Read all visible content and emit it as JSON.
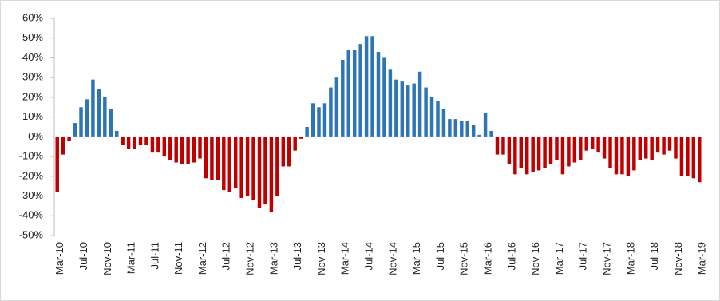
{
  "chart_data": {
    "type": "bar",
    "categories": [
      "Mar-10",
      null,
      null,
      null,
      "Jul-10",
      null,
      null,
      null,
      "Nov-10",
      null,
      null,
      null,
      "Mar-11",
      null,
      null,
      null,
      "Jul-11",
      null,
      null,
      null,
      "Nov-11",
      null,
      null,
      null,
      "Mar-12",
      null,
      null,
      null,
      "Jul-12",
      null,
      null,
      null,
      "Nov-12",
      null,
      null,
      null,
      "Mar-13",
      null,
      null,
      null,
      "Jul-13",
      null,
      null,
      null,
      "Nov-13",
      null,
      null,
      null,
      "Mar-14",
      null,
      null,
      null,
      "Jul-14",
      null,
      null,
      null,
      "Nov-14",
      null,
      null,
      null,
      "Mar-15",
      null,
      null,
      null,
      "Jul-15",
      null,
      null,
      null,
      "Nov-15",
      null,
      null,
      null,
      "Mar-16",
      null,
      null,
      null,
      "Jul-16",
      null,
      null,
      null,
      "Nov-16",
      null,
      null,
      null,
      "Mar-17",
      null,
      null,
      null,
      "Jul-17",
      null,
      null,
      null,
      "Nov-17",
      null,
      null,
      null,
      "Mar-18",
      null,
      null,
      null,
      "Jul-18",
      null,
      null,
      null,
      "Nov-18",
      null,
      null,
      null,
      "Mar-19"
    ],
    "values": [
      -28,
      -9,
      -2,
      7,
      15,
      19,
      29,
      24,
      20,
      14,
      3,
      -4,
      -6,
      -6,
      -4,
      -4,
      -8,
      -8,
      -10,
      -12,
      -13,
      -14,
      -14,
      -13,
      -11,
      -21,
      -22,
      -22,
      -27,
      -28,
      -26,
      -31,
      -30,
      -32,
      -36,
      -34,
      -38,
      -30,
      -15,
      -15,
      -7,
      -1,
      5,
      17,
      15,
      17,
      25,
      30,
      39,
      44,
      44,
      47,
      51,
      51,
      43,
      40,
      34,
      29,
      28,
      26,
      27,
      33,
      25,
      20,
      18,
      14,
      9,
      9,
      8,
      8,
      6,
      1,
      12,
      3,
      -9,
      -9,
      -14,
      -19,
      -16,
      -19,
      -18,
      -17,
      -16,
      -14,
      -12,
      -19,
      -15,
      -13,
      -12,
      -7,
      -6,
      -8,
      -11,
      -16,
      -19,
      -19,
      -20,
      -17,
      -12,
      -11,
      -12,
      -8,
      -9,
      -7,
      -11,
      -20,
      -20,
      -21,
      -23
    ],
    "positive_color": "#2e75b6",
    "negative_color": "#c00000",
    "ylim": [
      -50,
      60
    ],
    "yticks": [
      {
        "value": -50,
        "label": "-50%"
      },
      {
        "value": -40,
        "label": "-40%"
      },
      {
        "value": -30,
        "label": "-30%"
      },
      {
        "value": -20,
        "label": "-20%"
      },
      {
        "value": -10,
        "label": "-10%"
      },
      {
        "value": 0,
        "label": "0%"
      },
      {
        "value": 10,
        "label": "10%"
      },
      {
        "value": 20,
        "label": "20%"
      },
      {
        "value": 30,
        "label": "30%"
      },
      {
        "value": 40,
        "label": "40%"
      },
      {
        "value": 50,
        "label": "50%"
      },
      {
        "value": 60,
        "label": "60%"
      }
    ],
    "grid": false
  }
}
